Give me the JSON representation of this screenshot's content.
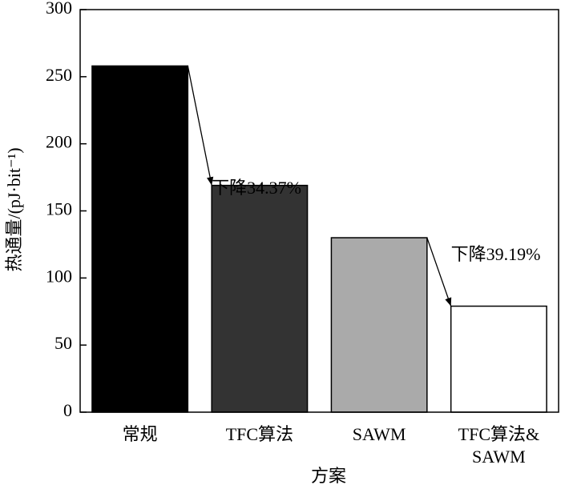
{
  "chart_data": {
    "type": "bar",
    "categories": [
      "常规",
      "TFC算法",
      "SAWM",
      "TFC算法&\nSAWM"
    ],
    "values": [
      258,
      169,
      130,
      79
    ],
    "colors": [
      "#000000",
      "#333333",
      "#aaaaaa",
      "#ffffff"
    ],
    "ylim": [
      0,
      300
    ],
    "yticks": [
      0,
      50,
      100,
      150,
      200,
      250,
      300
    ],
    "ylabel": "热通量/(pJ·bit⁻¹)",
    "xlabel": "方案",
    "annotations": [
      {
        "text": "下降34.37%",
        "from": 0,
        "to": 1
      },
      {
        "text": "下降39.19%",
        "from": 2,
        "to": 3
      }
    ]
  }
}
